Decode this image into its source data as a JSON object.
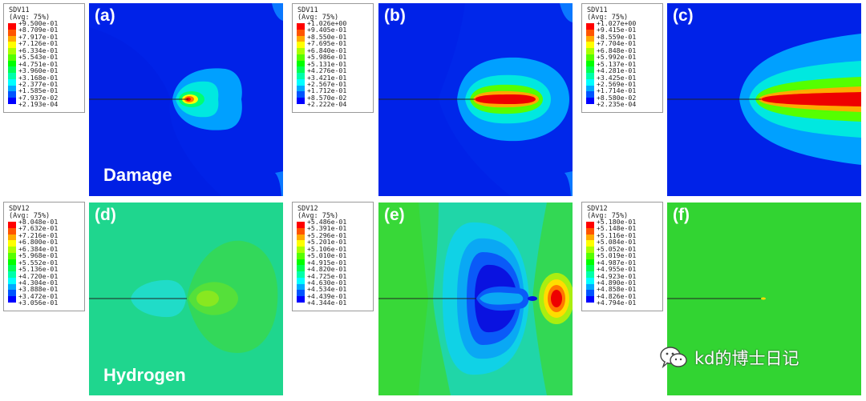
{
  "colormap": [
    "#ff0000",
    "#ff5500",
    "#ffaa00",
    "#ffff00",
    "#aaff00",
    "#55ff00",
    "#00ff00",
    "#00ff55",
    "#00ffaa",
    "#00ffff",
    "#00aaff",
    "#0055ff",
    "#0000ff"
  ],
  "legends": [
    {
      "var": "SDV11",
      "avg": "(Avg: 75%)",
      "values": [
        "+9.500e-01",
        "+8.709e-01",
        "+7.917e-01",
        "+7.126e-01",
        "+6.334e-01",
        "+5.543e-01",
        "+4.751e-01",
        "+3.960e-01",
        "+3.168e-01",
        "+2.377e-01",
        "+1.585e-01",
        "+7.937e-02",
        "+2.193e-04"
      ]
    },
    {
      "var": "SDV11",
      "avg": "(Avg: 75%)",
      "values": [
        "+1.026e+00",
        "+9.405e-01",
        "+8.550e-01",
        "+7.695e-01",
        "+6.840e-01",
        "+5.986e-01",
        "+5.131e-01",
        "+4.276e-01",
        "+3.421e-01",
        "+2.567e-01",
        "+1.712e-01",
        "+8.570e-02",
        "+2.222e-04"
      ]
    },
    {
      "var": "SDV11",
      "avg": "(Avg: 75%)",
      "values": [
        "+1.027e+00",
        "+9.415e-01",
        "+8.559e-01",
        "+7.704e-01",
        "+6.848e-01",
        "+5.992e-01",
        "+5.137e-01",
        "+4.281e-01",
        "+3.425e-01",
        "+2.569e-01",
        "+1.714e-01",
        "+8.580e-02",
        "+2.235e-04"
      ]
    },
    {
      "var": "SDV12",
      "avg": "(Avg: 75%)",
      "values": [
        "+8.048e-01",
        "+7.632e-01",
        "+7.216e-01",
        "+6.800e-01",
        "+6.384e-01",
        "+5.968e-01",
        "+5.552e-01",
        "+5.136e-01",
        "+4.720e-01",
        "+4.304e-01",
        "+3.888e-01",
        "+3.472e-01",
        "+3.056e-01"
      ]
    },
    {
      "var": "SDV12",
      "avg": "(Avg: 75%)",
      "values": [
        "+5.486e-01",
        "+5.391e-01",
        "+5.296e-01",
        "+5.201e-01",
        "+5.106e-01",
        "+5.010e-01",
        "+4.915e-01",
        "+4.820e-01",
        "+4.725e-01",
        "+4.630e-01",
        "+4.534e-01",
        "+4.439e-01",
        "+4.344e-01"
      ]
    },
    {
      "var": "SDV12",
      "avg": "(Avg: 75%)",
      "values": [
        "+5.180e-01",
        "+5.148e-01",
        "+5.116e-01",
        "+5.084e-01",
        "+5.052e-01",
        "+5.019e-01",
        "+4.987e-01",
        "+4.955e-01",
        "+4.923e-01",
        "+4.890e-01",
        "+4.858e-01",
        "+4.826e-01",
        "+4.794e-01"
      ]
    }
  ],
  "panels": [
    "(a)",
    "(b)",
    "(c)",
    "(d)",
    "(e)",
    "(f)"
  ],
  "fields": {
    "damage": "Damage",
    "hydrogen": "Hydrogen"
  },
  "watermark": {
    "text": "kd的博士日记",
    "icon": "wechat-icon"
  }
}
